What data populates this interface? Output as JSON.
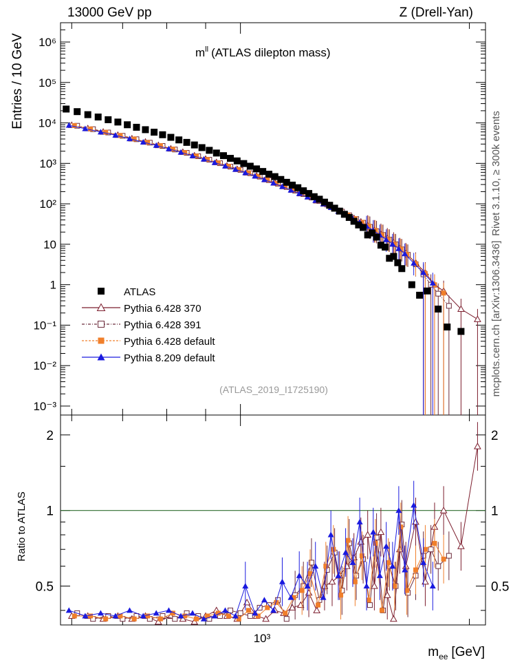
{
  "header": {
    "left": "13000 GeV pp",
    "right": "Z (Drell-Yan)"
  },
  "side_labels": {
    "top": "Rivet 3.1.10, ≥ 300k events",
    "bottom": "mcplots.cern.ch [arXiv:1306.3436]"
  },
  "main_plot": {
    "title": "mᴸᴸ (ATLAS dilepton mass)",
    "title_base": "m",
    "title_sup": "ll",
    "title_rest": "(ATLAS dilepton mass)",
    "ylabel": "Entries / 10 GeV",
    "watermark": "(ATLAS_2019_I1725190)",
    "yticks": [
      "10⁻³",
      "10⁻²",
      "10⁻¹",
      "1",
      "10",
      "10²",
      "10³",
      "10⁴",
      "10⁵",
      "10⁶"
    ]
  },
  "ratio_plot": {
    "ylabel": "Ratio to ATLAS",
    "yticks": [
      "0.5",
      "1",
      "2"
    ],
    "xlabel": "m",
    "xlabel_sub": "ee",
    "xlabel_unit": "[GeV]",
    "xtick": "10³"
  },
  "legend": [
    {
      "label": "ATLAS",
      "color": "#000000",
      "marker": "filled-square"
    },
    {
      "label": "Pythia 6.428 370",
      "color": "#7b1c2c",
      "marker": "open-triangle"
    },
    {
      "label": "Pythia 6.428 391",
      "color": "#6b2a3a",
      "marker": "open-square"
    },
    {
      "label": "Pythia 6.428 default",
      "color": "#f07f2b",
      "marker": "filled-square"
    },
    {
      "label": "Pythia 8.209 default",
      "color": "#1a1adf",
      "marker": "filled-triangle"
    }
  ],
  "chart_data": {
    "type": "scatter",
    "title": "mll (ATLAS dilepton mass)",
    "xlabel": "m_ee [GeV]",
    "ylabel": "Entries / 10 GeV",
    "x_scale": "log",
    "y_scale": "log",
    "xlim": [
      580,
      2100
    ],
    "ylim": [
      0.0006,
      3000000
    ],
    "ratio_ylim": [
      0.35,
      2.4
    ],
    "series": [
      {
        "name": "ATLAS",
        "x": [
          590,
          610,
          630,
          650,
          670,
          690,
          710,
          730,
          750,
          770,
          790,
          810,
          830,
          850,
          870,
          890,
          910,
          930,
          950,
          970,
          990,
          1010,
          1030,
          1050,
          1070,
          1090,
          1110,
          1130,
          1150,
          1170,
          1190,
          1210,
          1230,
          1250,
          1270,
          1290,
          1310,
          1330,
          1350,
          1370,
          1390,
          1410,
          1430,
          1450,
          1470,
          1490,
          1510,
          1530,
          1550,
          1570,
          1590,
          1610,
          1630,
          1680,
          1720,
          1760,
          1820,
          1870,
          1950
        ],
        "y": [
          22000,
          19000,
          16000,
          14000,
          12000,
          10500,
          9000,
          7800,
          6800,
          5900,
          5100,
          4400,
          3800,
          3300,
          2850,
          2450,
          2100,
          1800,
          1550,
          1330,
          1150,
          990,
          850,
          730,
          630,
          540,
          470,
          400,
          340,
          290,
          250,
          210,
          180,
          150,
          130,
          110,
          92,
          78,
          66,
          55,
          46,
          37,
          30,
          26,
          17,
          19,
          15,
          9.5,
          8.5,
          4.5,
          5,
          3.5,
          2.5,
          1.0,
          0.55,
          0.7,
          0.25,
          0.09,
          0.07
        ],
        "ratio": [
          1,
          1,
          1,
          1,
          1,
          1,
          1,
          1,
          1,
          1,
          1,
          1,
          1,
          1,
          1,
          1,
          1,
          1,
          1,
          1,
          1,
          1,
          1,
          1,
          1,
          1,
          1,
          1,
          1,
          1,
          1,
          1,
          1,
          1,
          1,
          1,
          1,
          1,
          1,
          1,
          1,
          1,
          1,
          1,
          1,
          1,
          1,
          1,
          1,
          1,
          1,
          1,
          1,
          1,
          1,
          1,
          1,
          1,
          1
        ]
      },
      {
        "name": "Pythia 6.428 370",
        "x": [
          600,
          630,
          660,
          690,
          720,
          750,
          780,
          810,
          840,
          870,
          900,
          930,
          960,
          990,
          1020,
          1050,
          1080,
          1110,
          1140,
          1170,
          1200,
          1230,
          1260,
          1290,
          1320,
          1350,
          1380,
          1410,
          1440,
          1470,
          1500,
          1530,
          1560,
          1590,
          1620,
          1650,
          1700,
          1750,
          1800,
          1850,
          1950,
          2050
        ],
        "y": [
          8800,
          7300,
          6000,
          5000,
          4100,
          3400,
          2800,
          2300,
          1900,
          1550,
          1280,
          1060,
          870,
          720,
          590,
          490,
          400,
          330,
          270,
          220,
          180,
          150,
          120,
          100,
          82,
          66,
          54,
          44,
          36,
          29,
          22,
          18,
          14,
          11,
          8,
          6,
          3.5,
          2.0,
          1.0,
          0.7,
          0.25,
          0.14
        ],
        "ratio": [
          0.38,
          0.38,
          0.37,
          0.38,
          0.37,
          0.38,
          0.36,
          0.38,
          0.37,
          0.36,
          0.38,
          0.4,
          0.38,
          0.37,
          0.43,
          0.38,
          0.37,
          0.4,
          0.39,
          0.41,
          0.42,
          0.47,
          0.4,
          0.5,
          0.52,
          0.55,
          0.6,
          0.65,
          0.75,
          0.8,
          0.5,
          0.82,
          0.46,
          0.37,
          0.7,
          0.6,
          0.9,
          0.52,
          0.86,
          1.0,
          0.72,
          1.8
        ]
      },
      {
        "name": "Pythia 6.428 391",
        "x": [
          610,
          640,
          670,
          700,
          730,
          760,
          790,
          820,
          850,
          880,
          910,
          940,
          970,
          1000,
          1030,
          1060,
          1090,
          1120,
          1150,
          1180,
          1210,
          1240,
          1270,
          1300,
          1330,
          1360,
          1390,
          1420,
          1450,
          1480,
          1510,
          1540,
          1570,
          1600,
          1630,
          1660,
          1700,
          1740,
          1780,
          1820,
          1880
        ],
        "y": [
          8500,
          7000,
          5800,
          4800,
          3950,
          3250,
          2700,
          2200,
          1820,
          1500,
          1230,
          1010,
          830,
          690,
          570,
          470,
          385,
          315,
          260,
          212,
          174,
          143,
          117,
          96,
          79,
          64,
          52,
          42,
          34,
          27,
          21,
          17,
          13,
          10,
          7.5,
          5.5,
          3.2,
          1.8,
          1.0,
          0.6,
          0.3
        ],
        "ratio": [
          0.39,
          0.37,
          0.38,
          0.37,
          0.38,
          0.37,
          0.38,
          0.37,
          0.39,
          0.38,
          0.37,
          0.38,
          0.4,
          0.39,
          0.38,
          0.41,
          0.42,
          0.44,
          0.37,
          0.46,
          0.5,
          0.62,
          0.44,
          0.58,
          0.68,
          0.48,
          0.74,
          0.55,
          0.64,
          0.42,
          0.78,
          0.4,
          0.6,
          0.5,
          0.88,
          0.47,
          0.55,
          0.66,
          0.7,
          0.6,
          0.66
        ]
      },
      {
        "name": "Pythia 6.428 default",
        "x": [
          605,
          635,
          665,
          695,
          725,
          755,
          785,
          815,
          845,
          875,
          905,
          935,
          965,
          995,
          1025,
          1055,
          1085,
          1115,
          1145,
          1175,
          1205,
          1235,
          1265,
          1295,
          1325,
          1355,
          1385,
          1415,
          1445,
          1475,
          1505,
          1535,
          1565,
          1595,
          1625,
          1655,
          1700,
          1750,
          1800,
          1850
        ],
        "y": [
          8600,
          7100,
          5900,
          4900,
          4000,
          3300,
          2750,
          2250,
          1850,
          1520,
          1250,
          1030,
          850,
          700,
          580,
          480,
          390,
          320,
          265,
          216,
          177,
          146,
          120,
          98,
          80,
          65,
          53,
          43,
          35,
          28,
          22,
          17,
          13,
          10,
          7.6,
          5.6,
          3.3,
          1.9,
          1.0,
          0.62
        ],
        "ratio": [
          0.38,
          0.38,
          0.37,
          0.38,
          0.37,
          0.38,
          0.37,
          0.39,
          0.38,
          0.37,
          0.38,
          0.39,
          0.38,
          0.37,
          0.4,
          0.38,
          0.41,
          0.43,
          0.39,
          0.45,
          0.48,
          0.56,
          0.42,
          0.6,
          0.7,
          0.46,
          0.76,
          0.52,
          0.66,
          0.44,
          0.74,
          0.4,
          0.62,
          0.5,
          0.86,
          0.48,
          0.58,
          0.7,
          0.74,
          0.64
        ]
      },
      {
        "name": "Pythia 8.209 default",
        "x": [
          595,
          625,
          655,
          685,
          715,
          745,
          775,
          805,
          835,
          865,
          895,
          925,
          955,
          985,
          1015,
          1045,
          1075,
          1105,
          1135,
          1165,
          1195,
          1225,
          1255,
          1285,
          1315,
          1345,
          1375,
          1405,
          1435,
          1465,
          1495,
          1525,
          1555,
          1585,
          1615,
          1645,
          1690,
          1740,
          1790
        ],
        "y": [
          8700,
          7200,
          5950,
          4950,
          4050,
          3350,
          2780,
          2280,
          1880,
          1540,
          1270,
          1045,
          860,
          710,
          585,
          485,
          395,
          325,
          268,
          218,
          179,
          147,
          121,
          99,
          81,
          65,
          53,
          43,
          35,
          28,
          22,
          17,
          13,
          10,
          7.8,
          5.8,
          3.4,
          2.0,
          1.1
        ],
        "ratio": [
          0.4,
          0.38,
          0.39,
          0.38,
          0.4,
          0.38,
          0.39,
          0.4,
          0.38,
          0.39,
          0.37,
          0.38,
          0.4,
          0.38,
          0.5,
          0.39,
          0.44,
          0.4,
          0.52,
          0.45,
          0.55,
          0.5,
          0.6,
          0.45,
          0.8,
          0.55,
          0.68,
          0.62,
          0.9,
          0.5,
          0.82,
          0.55,
          0.72,
          0.6,
          1.0,
          0.58,
          1.05,
          0.62,
          0.5
        ]
      }
    ]
  }
}
